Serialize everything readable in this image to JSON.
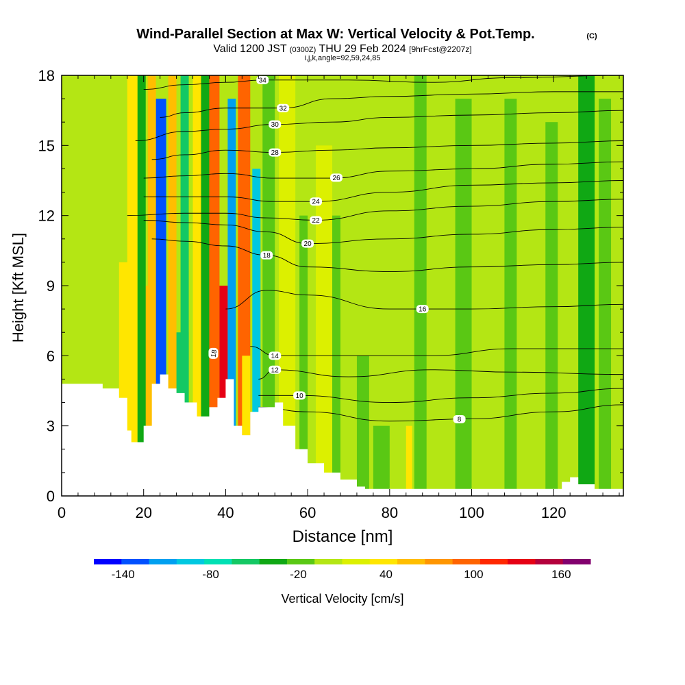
{
  "chart_data": {
    "type": "heatmap",
    "title": "Wind-Parallel Section at Max W: Vertical Velocity & Pot.Temp.",
    "title_mark": "(C)",
    "subtitle": {
      "valid_label": "Valid 1200 JST",
      "zulu": "(0300Z)",
      "date": "THU 29 Feb 2024",
      "forecast": "[9hrFcst@2207z]"
    },
    "grid_info": "i,j,k,angle=92,59,24,85",
    "xlabel": "Distance [nm]",
    "ylabel": "Height [Kft MSL]",
    "xlim": [
      0,
      137
    ],
    "ylim": [
      0,
      18
    ],
    "x_ticks": [
      0,
      20,
      40,
      60,
      80,
      100,
      120
    ],
    "y_ticks": [
      0,
      3,
      6,
      9,
      12,
      15,
      18
    ],
    "colorbar": {
      "label": "Vertical Velocity [cm/s]",
      "min": -160,
      "max": 180,
      "step": 20,
      "tick_values": [
        -140,
        -80,
        -20,
        40,
        100,
        160
      ],
      "tick_labels": [
        "-140",
        "-80",
        "-20",
        "40",
        "100",
        "160"
      ],
      "colors": [
        "#0000ff",
        "#0050ff",
        "#00a0f0",
        "#00c8e0",
        "#00e0b4",
        "#14c864",
        "#10a814",
        "#5ac814",
        "#b4e614",
        "#dcf000",
        "#ffe600",
        "#ffbe00",
        "#ff9600",
        "#ff6400",
        "#ff2800",
        "#e60014",
        "#b4003c",
        "#82006e"
      ]
    },
    "terrain_profile": [
      [
        0,
        4.8
      ],
      [
        8,
        4.8
      ],
      [
        10,
        4.6
      ],
      [
        14,
        4.2
      ],
      [
        16,
        2.8
      ],
      [
        17,
        2.3
      ],
      [
        19,
        2.3
      ],
      [
        20,
        3.0
      ],
      [
        22,
        4.8
      ],
      [
        24,
        5.2
      ],
      [
        26,
        4.6
      ],
      [
        28,
        4.4
      ],
      [
        30,
        4.0
      ],
      [
        33,
        3.4
      ],
      [
        36,
        3.8
      ],
      [
        38,
        4.2
      ],
      [
        40,
        5.0
      ],
      [
        42,
        3.0
      ],
      [
        44,
        2.6
      ],
      [
        46,
        3.6
      ],
      [
        48,
        3.8
      ],
      [
        52,
        4.0
      ],
      [
        54,
        3.0
      ],
      [
        57,
        2.0
      ],
      [
        60,
        1.4
      ],
      [
        64,
        1.0
      ],
      [
        68,
        0.7
      ],
      [
        72,
        0.4
      ],
      [
        74,
        0.3
      ],
      [
        120,
        0.3
      ],
      [
        122,
        0.6
      ],
      [
        124,
        0.8
      ],
      [
        126,
        0.5
      ],
      [
        130,
        0.3
      ],
      [
        137,
        0.3
      ]
    ],
    "velocity_bands": [
      {
        "x": 2,
        "w": 5,
        "value": 0,
        "top": 18
      },
      {
        "x": 14,
        "w": 6,
        "value": 50,
        "top": 10
      },
      {
        "x": 19,
        "w": 5,
        "value": 60,
        "top": 9
      },
      {
        "x": 16,
        "w": 3,
        "value": 40,
        "top": 18
      },
      {
        "x": 18.5,
        "w": 2,
        "value": -40,
        "top": 18
      },
      {
        "x": 21,
        "w": 2,
        "value": 70,
        "top": 18
      },
      {
        "x": 23,
        "w": 2.5,
        "value": -130,
        "top": 17
      },
      {
        "x": 26,
        "w": 2,
        "value": 60,
        "top": 18
      },
      {
        "x": 28,
        "w": 3,
        "value": -60,
        "top": 7
      },
      {
        "x": 29,
        "w": 2,
        "value": -60,
        "top": 18
      },
      {
        "x": 32,
        "w": 2,
        "value": 50,
        "top": 18
      },
      {
        "x": 34,
        "w": 2,
        "value": -40,
        "top": 18
      },
      {
        "x": 36,
        "w": 2.5,
        "value": 100,
        "top": 18
      },
      {
        "x": 38.5,
        "w": 2,
        "value": 150,
        "top": 9
      },
      {
        "x": 40.5,
        "w": 2,
        "value": -120,
        "top": 17
      },
      {
        "x": 43,
        "w": 3,
        "value": 110,
        "top": 18
      },
      {
        "x": 44,
        "w": 2,
        "value": 50,
        "top": 6
      },
      {
        "x": 46.5,
        "w": 2,
        "value": -100,
        "top": 14
      },
      {
        "x": 49,
        "w": 3,
        "value": -20,
        "top": 18
      },
      {
        "x": 53,
        "w": 4,
        "value": 20,
        "top": 18
      },
      {
        "x": 58,
        "w": 2,
        "value": -20,
        "top": 12
      },
      {
        "x": 62,
        "w": 4,
        "value": 30,
        "top": 15
      },
      {
        "x": 66,
        "w": 2,
        "value": -10,
        "top": 12
      },
      {
        "x": 72,
        "w": 3,
        "value": -20,
        "top": 6
      },
      {
        "x": 84,
        "w": 1.5,
        "value": 40,
        "top": 3
      },
      {
        "x": 76,
        "w": 4,
        "value": -10,
        "top": 3
      },
      {
        "x": 86,
        "w": 3,
        "value": -10,
        "top": 18
      },
      {
        "x": 96,
        "w": 4,
        "value": -10,
        "top": 17
      },
      {
        "x": 108,
        "w": 3,
        "value": -15,
        "top": 17
      },
      {
        "x": 118,
        "w": 3,
        "value": -20,
        "top": 16
      },
      {
        "x": 126,
        "w": 4,
        "value": -30,
        "top": 18
      },
      {
        "x": 131,
        "w": 3,
        "value": -20,
        "top": 17
      }
    ],
    "theta_contours": [
      {
        "value": 8,
        "label_at": 97,
        "points": [
          [
            48,
            3.8
          ],
          [
            60,
            3.6
          ],
          [
            80,
            3.2
          ],
          [
            100,
            3.3
          ],
          [
            120,
            3.6
          ],
          [
            137,
            3.9
          ]
        ]
      },
      {
        "value": 10,
        "label_at": 58,
        "points": [
          [
            48,
            4.3
          ],
          [
            58,
            4.3
          ],
          [
            80,
            4.0
          ],
          [
            100,
            4.2
          ],
          [
            120,
            4.4
          ],
          [
            137,
            4.6
          ]
        ]
      },
      {
        "value": 12,
        "label_at": 52,
        "points": [
          [
            48,
            5.0
          ],
          [
            52,
            5.4
          ],
          [
            70,
            5.1
          ],
          [
            90,
            5.4
          ],
          [
            110,
            5.3
          ],
          [
            137,
            5.2
          ]
        ]
      },
      {
        "value": 14,
        "label_at": 52,
        "points": [
          [
            46,
            6.4
          ],
          [
            52,
            6.0
          ],
          [
            70,
            6.0
          ],
          [
            90,
            6.0
          ],
          [
            110,
            6.3
          ],
          [
            137,
            6.3
          ]
        ]
      },
      {
        "value": 16,
        "label_at": 88,
        "points": [
          [
            40,
            8.0
          ],
          [
            50,
            8.8
          ],
          [
            60,
            8.6
          ],
          [
            80,
            8.0
          ],
          [
            100,
            8.0
          ],
          [
            120,
            8.1
          ],
          [
            137,
            8.2
          ]
        ]
      },
      {
        "value": 18,
        "label_at": 50,
        "points": [
          [
            22,
            11.0
          ],
          [
            30,
            10.9
          ],
          [
            40,
            10.7
          ],
          [
            50,
            10.3
          ],
          [
            60,
            9.8
          ],
          [
            80,
            9.6
          ],
          [
            100,
            9.8
          ],
          [
            120,
            9.9
          ],
          [
            137,
            10.0
          ]
        ]
      },
      {
        "value": 20,
        "label_at": 60,
        "points": [
          [
            20,
            11.8
          ],
          [
            30,
            11.7
          ],
          [
            40,
            11.6
          ],
          [
            50,
            11.3
          ],
          [
            60,
            10.8
          ],
          [
            80,
            11.0
          ],
          [
            100,
            11.2
          ],
          [
            120,
            11.4
          ],
          [
            137,
            11.5
          ]
        ]
      },
      {
        "value": 22,
        "label_at": 62,
        "points": [
          [
            16,
            12.0
          ],
          [
            30,
            12.1
          ],
          [
            40,
            12.1
          ],
          [
            50,
            11.9
          ],
          [
            62,
            11.8
          ],
          [
            80,
            12.2
          ],
          [
            100,
            12.4
          ],
          [
            120,
            12.6
          ],
          [
            137,
            12.7
          ]
        ]
      },
      {
        "value": 24,
        "label_at": 62,
        "points": [
          [
            20,
            12.8
          ],
          [
            30,
            12.8
          ],
          [
            40,
            12.8
          ],
          [
            52,
            12.6
          ],
          [
            62,
            12.6
          ],
          [
            80,
            13.0
          ],
          [
            100,
            13.3
          ],
          [
            120,
            13.4
          ],
          [
            137,
            13.5
          ]
        ]
      },
      {
        "value": 26,
        "label_at": 67,
        "points": [
          [
            20,
            13.6
          ],
          [
            30,
            13.7
          ],
          [
            40,
            13.8
          ],
          [
            52,
            13.6
          ],
          [
            66,
            13.6
          ],
          [
            80,
            13.9
          ],
          [
            100,
            14.0
          ],
          [
            120,
            14.2
          ],
          [
            137,
            14.3
          ]
        ]
      },
      {
        "value": 28,
        "label_at": 52,
        "points": [
          [
            22,
            14.4
          ],
          [
            30,
            14.6
          ],
          [
            40,
            14.8
          ],
          [
            52,
            14.7
          ],
          [
            66,
            14.8
          ],
          [
            80,
            14.9
          ],
          [
            100,
            15.0
          ],
          [
            120,
            15.1
          ],
          [
            137,
            15.2
          ]
        ]
      },
      {
        "value": 30,
        "label_at": 52,
        "points": [
          [
            18,
            15.2
          ],
          [
            30,
            15.6
          ],
          [
            40,
            15.7
          ],
          [
            52,
            15.9
          ],
          [
            66,
            16.0
          ],
          [
            80,
            16.2
          ],
          [
            100,
            16.3
          ],
          [
            120,
            16.4
          ],
          [
            137,
            16.5
          ]
        ]
      },
      {
        "value": 32,
        "label_at": 54,
        "points": [
          [
            24,
            16.2
          ],
          [
            30,
            16.4
          ],
          [
            40,
            16.6
          ],
          [
            54,
            16.6
          ],
          [
            66,
            17.0
          ],
          [
            80,
            17.1
          ],
          [
            100,
            17.2
          ],
          [
            120,
            17.3
          ],
          [
            137,
            17.3
          ]
        ]
      },
      {
        "value": 34,
        "label_at": 49,
        "points": [
          [
            20,
            17.4
          ],
          [
            30,
            17.6
          ],
          [
            40,
            17.7
          ],
          [
            49,
            17.8
          ],
          [
            70,
            17.8
          ],
          [
            90,
            17.7
          ],
          [
            110,
            17.9
          ],
          [
            137,
            18.0
          ]
        ]
      }
    ],
    "inline_label": {
      "value": 18,
      "x": 37,
      "y": 6.1
    }
  }
}
